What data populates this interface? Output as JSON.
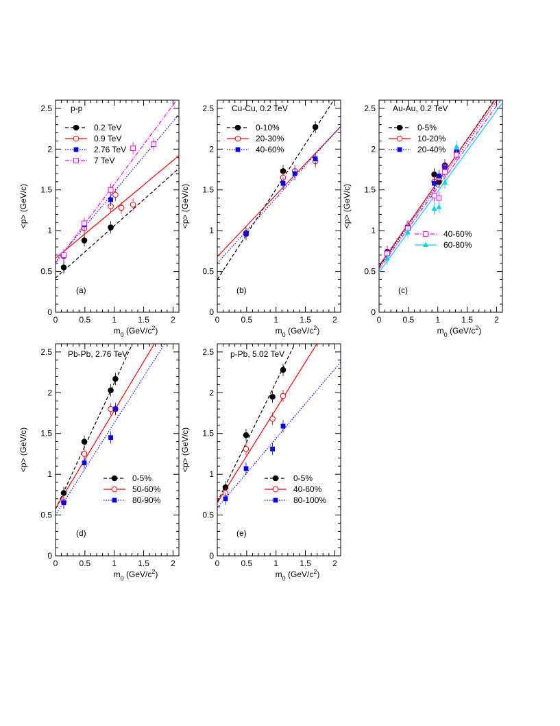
{
  "axes": {
    "ylabel": "<p> (GeV/c)",
    "xlabel_main": "m",
    "xlabel_sub": "0",
    "xlabel_rest": " (GeV/c",
    "xlabel_sup": "2",
    "xlabel_end": ")",
    "xlim": [
      0,
      2.1
    ],
    "ylim": [
      0,
      2.6
    ],
    "xticks": [
      "0",
      "0.5",
      "1",
      "1.5",
      "2"
    ],
    "yticks": [
      "0",
      "0.5",
      "1",
      "1.5",
      "2",
      "2.5"
    ]
  },
  "chart_data": [
    {
      "type": "scatter",
      "system": "p-p",
      "panel_label": "(a)",
      "series": [
        {
          "name": "0.2 TeV",
          "color": "#000000",
          "marker": "circle-filled",
          "dash": "dashed",
          "points": [
            [
              0.14,
              0.55
            ],
            [
              0.49,
              0.88
            ],
            [
              0.94,
              1.04
            ]
          ],
          "fit": [
            0.42,
            0.64
          ]
        },
        {
          "name": "0.9 TeV",
          "color": "#ff0000",
          "marker": "circle-open",
          "dash": "solid",
          "points": [
            [
              0.14,
              0.69
            ],
            [
              0.49,
              1.03
            ],
            [
              0.94,
              1.3
            ],
            [
              1.02,
              1.44
            ],
            [
              1.12,
              1.28
            ],
            [
              1.32,
              1.32
            ]
          ],
          "fit": [
            0.66,
            0.6
          ]
        },
        {
          "name": "2.76 TeV",
          "color": "#0000ff",
          "marker": "square-filled",
          "dash": "dotted",
          "points": [
            [
              0.14,
              0.69
            ],
            [
              0.49,
              1.07
            ],
            [
              0.94,
              1.38
            ]
          ],
          "fit": [
            0.62,
            0.86
          ]
        },
        {
          "name": "7 TeV",
          "color": "#ff00ff",
          "marker": "square-open",
          "dash": "dashdot",
          "points": [
            [
              0.14,
              0.7
            ],
            [
              0.49,
              1.09
            ],
            [
              0.94,
              1.5
            ],
            [
              1.32,
              2.01
            ],
            [
              1.67,
              2.06
            ]
          ],
          "fit": [
            0.6,
            0.97
          ]
        }
      ]
    },
    {
      "type": "scatter",
      "system": "Cu-Cu, 0.2 TeV",
      "panel_label": "(b)",
      "series": [
        {
          "name": "0-10%",
          "color": "#000000",
          "marker": "circle-filled",
          "dash": "dashed",
          "points": [
            [
              0.49,
              0.97
            ],
            [
              1.12,
              1.73
            ],
            [
              1.67,
              2.27
            ]
          ],
          "fit": [
            0.4,
            1.11
          ]
        },
        {
          "name": "20-30%",
          "color": "#ff0000",
          "marker": "circle-open",
          "dash": "solid",
          "points": [
            [
              0.49,
              0.96
            ],
            [
              1.12,
              1.65
            ],
            [
              1.32,
              1.73
            ],
            [
              1.67,
              1.85
            ]
          ],
          "fit": [
            0.68,
            0.76
          ]
        },
        {
          "name": "40-60%",
          "color": "#0000ff",
          "marker": "square-filled",
          "dash": "dotted",
          "points": [
            [
              0.49,
              0.96
            ],
            [
              1.12,
              1.58
            ],
            [
              1.32,
              1.7
            ],
            [
              1.67,
              1.88
            ]
          ],
          "fit": [
            0.6,
            0.8
          ]
        }
      ]
    },
    {
      "type": "scatter",
      "system": "Au-Au, 0.2 TeV",
      "panel_label": "(c)",
      "series": [
        {
          "name": "0-5%",
          "color": "#000000",
          "marker": "circle-filled",
          "dash": "dashed",
          "points": [
            [
              0.14,
              0.74
            ],
            [
              0.49,
              1.05
            ],
            [
              0.94,
              1.69
            ],
            [
              1.02,
              1.6
            ],
            [
              1.12,
              1.8
            ],
            [
              1.32,
              1.96
            ]
          ],
          "fit": [
            0.56,
            1.04
          ]
        },
        {
          "name": "10-20%",
          "color": "#ff0000",
          "marker": "circle-open",
          "dash": "solid",
          "points": [
            [
              0.14,
              0.73
            ],
            [
              0.49,
              1.05
            ],
            [
              0.94,
              1.6
            ],
            [
              1.02,
              1.65
            ],
            [
              1.12,
              1.78
            ],
            [
              1.32,
              1.95
            ]
          ],
          "fit": [
            0.57,
            1.03
          ]
        },
        {
          "name": "20-40%",
          "color": "#0000ff",
          "marker": "square-filled",
          "dash": "dotted",
          "points": [
            [
              0.14,
              0.73
            ],
            [
              0.49,
              1.04
            ],
            [
              0.94,
              1.58
            ],
            [
              1.02,
              1.67
            ],
            [
              1.12,
              1.77
            ],
            [
              1.32,
              1.97
            ]
          ],
          "fit": [
            0.55,
            1.02
          ]
        },
        {
          "name": "40-60%",
          "color": "#ff00ff",
          "marker": "square-open",
          "dash": "dashdot",
          "points": [
            [
              0.14,
              0.72
            ],
            [
              0.49,
              1.03
            ],
            [
              0.94,
              1.43
            ],
            [
              1.02,
              1.4
            ],
            [
              1.12,
              1.72
            ],
            [
              1.32,
              1.93
            ]
          ],
          "fit": [
            0.53,
            1.0
          ]
        },
        {
          "name": "60-80%",
          "color": "#00d0ff",
          "marker": "triangle-filled",
          "dash": "solid",
          "points": [
            [
              0.14,
              0.66
            ],
            [
              0.49,
              0.98
            ],
            [
              0.94,
              1.27
            ],
            [
              1.02,
              1.29
            ],
            [
              1.12,
              1.59
            ],
            [
              1.32,
              2.03
            ]
          ],
          "fit": [
            0.49,
            0.99
          ]
        }
      ]
    },
    {
      "type": "scatter",
      "system": "Pb-Pb, 2.76 TeV",
      "panel_label": "(d)",
      "series": [
        {
          "name": "0-5%",
          "color": "#000000",
          "marker": "circle-filled",
          "dash": "dashed",
          "points": [
            [
              0.14,
              0.77
            ],
            [
              0.49,
              1.4
            ],
            [
              0.94,
              2.03
            ],
            [
              1.02,
              2.17
            ]
          ],
          "fit": [
            0.57,
            1.55
          ]
        },
        {
          "name": "50-60%",
          "color": "#ff0000",
          "marker": "circle-open",
          "dash": "solid",
          "points": [
            [
              0.14,
              0.66
            ],
            [
              0.49,
              1.25
            ],
            [
              0.94,
              1.8
            ],
            [
              1.02,
              1.8
            ]
          ],
          "fit": [
            0.58,
            1.2
          ]
        },
        {
          "name": "80-90%",
          "color": "#0000ff",
          "marker": "square-filled",
          "dash": "dotted",
          "points": [
            [
              0.14,
              0.65
            ],
            [
              0.49,
              1.14
            ],
            [
              0.94,
              1.45
            ],
            [
              1.02,
              1.8
            ]
          ],
          "fit": [
            0.5,
            1.13
          ]
        }
      ]
    },
    {
      "type": "scatter",
      "system": "p-Pb, 5.02 TeV",
      "panel_label": "(e)",
      "series": [
        {
          "name": "0-5%",
          "color": "#000000",
          "marker": "circle-filled",
          "dash": "dashed",
          "points": [
            [
              0.14,
              0.84
            ],
            [
              0.49,
              1.48
            ],
            [
              0.94,
              1.95
            ],
            [
              1.12,
              2.28
            ]
          ],
          "fit": [
            0.66,
            1.47
          ]
        },
        {
          "name": "40-60%",
          "color": "#ff0000",
          "marker": "circle-open",
          "dash": "solid",
          "points": [
            [
              0.14,
              0.77
            ],
            [
              0.49,
              1.31
            ],
            [
              0.94,
              1.68
            ],
            [
              1.12,
              1.96
            ]
          ],
          "fit": [
            0.65,
            1.15
          ]
        },
        {
          "name": "80-100%",
          "color": "#0000ff",
          "marker": "square-filled",
          "dash": "dotted",
          "points": [
            [
              0.14,
              0.7
            ],
            [
              0.49,
              1.07
            ],
            [
              0.94,
              1.31
            ],
            [
              1.12,
              1.59
            ]
          ],
          "fit": [
            0.59,
            0.85
          ]
        }
      ]
    }
  ]
}
